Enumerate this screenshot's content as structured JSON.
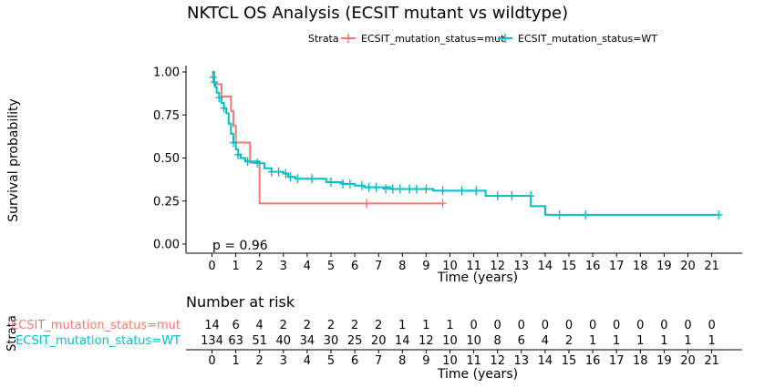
{
  "chart_data": [
    {
      "type": "line",
      "subtype": "kaplan-meier",
      "title": "NKTCL OS Analysis (ECSIT mutant vs wildtype)",
      "xlabel": "Time (years)",
      "ylabel": "Survival probability",
      "xlim": [
        -0.5,
        22.5
      ],
      "ylim": [
        0,
        1
      ],
      "x_ticks": [
        0,
        1,
        2,
        3,
        4,
        5,
        6,
        7,
        8,
        9,
        10,
        11,
        12,
        13,
        14,
        15,
        16,
        17,
        18,
        19,
        20,
        21
      ],
      "y_ticks": [
        0,
        0.25,
        0.5,
        0.75,
        1
      ],
      "y_tick_labels": [
        "0.00",
        "0.25",
        "0.50",
        "0.75",
        "1.00"
      ],
      "legend_title": "Strata",
      "legend_position": "top",
      "grid": false,
      "annotation": "p = 0.96",
      "series": [
        {
          "name": "ECSIT_mutation_status=mut",
          "color": "#F8766D",
          "steps": [
            [
              0,
              1.0
            ],
            [
              0.1,
              0.929
            ],
            [
              0.4,
              0.857
            ],
            [
              0.8,
              0.771
            ],
            [
              0.9,
              0.686
            ],
            [
              1.0,
              0.59
            ],
            [
              1.6,
              0.472
            ],
            [
              2.0,
              0.236
            ],
            [
              9.7,
              0.236
            ]
          ],
          "censors": [
            [
              6.5,
              0.236
            ],
            [
              9.7,
              0.236
            ]
          ]
        },
        {
          "name": "ECSIT_mutation_status=WT",
          "color": "#00BFC4",
          "steps": [
            [
              0,
              1.0
            ],
            [
              0.05,
              0.97
            ],
            [
              0.1,
              0.94
            ],
            [
              0.15,
              0.91
            ],
            [
              0.2,
              0.88
            ],
            [
              0.3,
              0.85
            ],
            [
              0.4,
              0.82
            ],
            [
              0.5,
              0.79
            ],
            [
              0.6,
              0.76
            ],
            [
              0.7,
              0.7
            ],
            [
              0.8,
              0.64
            ],
            [
              0.9,
              0.59
            ],
            [
              1.0,
              0.55
            ],
            [
              1.1,
              0.52
            ],
            [
              1.2,
              0.5
            ],
            [
              1.4,
              0.48
            ],
            [
              2.0,
              0.47
            ],
            [
              2.2,
              0.44
            ],
            [
              2.5,
              0.42
            ],
            [
              3.0,
              0.41
            ],
            [
              3.2,
              0.39
            ],
            [
              3.5,
              0.38
            ],
            [
              4.8,
              0.36
            ],
            [
              5.5,
              0.35
            ],
            [
              6.0,
              0.34
            ],
            [
              6.4,
              0.33
            ],
            [
              7.5,
              0.32
            ],
            [
              8.5,
              0.32
            ],
            [
              9.3,
              0.31
            ],
            [
              11.5,
              0.28
            ],
            [
              13.4,
              0.22
            ],
            [
              14.0,
              0.17
            ],
            [
              21.3,
              0.17
            ]
          ],
          "censors": [
            [
              0.05,
              0.97
            ],
            [
              0.1,
              0.94
            ],
            [
              0.3,
              0.85
            ],
            [
              0.5,
              0.79
            ],
            [
              0.9,
              0.59
            ],
            [
              1.1,
              0.52
            ],
            [
              1.5,
              0.48
            ],
            [
              1.9,
              0.47
            ],
            [
              2.5,
              0.42
            ],
            [
              2.8,
              0.42
            ],
            [
              3.1,
              0.41
            ],
            [
              3.3,
              0.39
            ],
            [
              3.6,
              0.38
            ],
            [
              4.2,
              0.38
            ],
            [
              5.0,
              0.36
            ],
            [
              5.5,
              0.35
            ],
            [
              5.8,
              0.35
            ],
            [
              6.3,
              0.34
            ],
            [
              6.6,
              0.33
            ],
            [
              6.9,
              0.33
            ],
            [
              7.3,
              0.32
            ],
            [
              7.6,
              0.32
            ],
            [
              7.9,
              0.32
            ],
            [
              8.3,
              0.32
            ],
            [
              8.6,
              0.32
            ],
            [
              9.0,
              0.32
            ],
            [
              9.7,
              0.31
            ],
            [
              10.5,
              0.31
            ],
            [
              11.1,
              0.31
            ],
            [
              12.0,
              0.28
            ],
            [
              12.6,
              0.28
            ],
            [
              13.4,
              0.28
            ],
            [
              14.6,
              0.17
            ],
            [
              15.7,
              0.17
            ],
            [
              21.3,
              0.17
            ]
          ]
        }
      ]
    },
    {
      "type": "table",
      "title": "Number at risk",
      "xlabel": "Time (years)",
      "ylabel": "Strata",
      "x_ticks": [
        0,
        1,
        2,
        3,
        4,
        5,
        6,
        7,
        8,
        9,
        10,
        11,
        12,
        13,
        14,
        15,
        16,
        17,
        18,
        19,
        20,
        21
      ],
      "rows": [
        {
          "name": "ECSIT_mutation_status=mut",
          "color": "#F8766D",
          "values": [
            14,
            6,
            4,
            2,
            2,
            2,
            2,
            2,
            1,
            1,
            1,
            0,
            0,
            0,
            0,
            0,
            0,
            0,
            0,
            0,
            0,
            0
          ]
        },
        {
          "name": "ECSIT_mutation_status=WT",
          "color": "#00BFC4",
          "values": [
            134,
            63,
            51,
            40,
            34,
            30,
            25,
            20,
            14,
            12,
            10,
            10,
            8,
            6,
            4,
            2,
            1,
            1,
            1,
            1,
            1,
            1
          ]
        }
      ]
    }
  ]
}
